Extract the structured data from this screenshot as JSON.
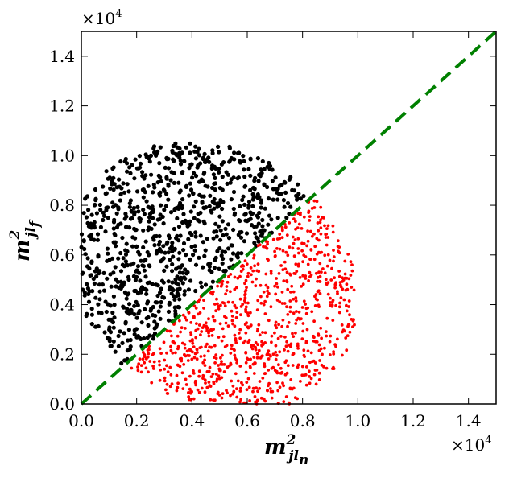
{
  "chart_data": {
    "type": "scatter",
    "title": "",
    "xlabel": {
      "main": "m",
      "sup": "2",
      "sub": "jl",
      "subsub": "n"
    },
    "ylabel": {
      "main": "m",
      "sup": "2",
      "sub": "jl",
      "subsub": "f"
    },
    "x_multiplier": {
      "base": "×10",
      "exp": "4"
    },
    "y_multiplier": {
      "base": "×10",
      "exp": "4"
    },
    "xlim": [
      0,
      15000
    ],
    "ylim": [
      0,
      15000
    ],
    "xticks": [
      0,
      2000,
      4000,
      6000,
      8000,
      10000,
      12000,
      14000
    ],
    "yticks": [
      0,
      2000,
      4000,
      6000,
      8000,
      10000,
      12000,
      14000
    ],
    "xtick_labels": [
      "0.0",
      "0.2",
      "0.4",
      "0.6",
      "0.8",
      "1.0",
      "1.2",
      "1.4"
    ],
    "ytick_labels": [
      "0.0",
      "0.2",
      "0.4",
      "0.6",
      "0.8",
      "1.0",
      "1.2",
      "1.4"
    ],
    "grid": false,
    "diagonal": {
      "x": [
        0,
        15000
      ],
      "y": [
        0,
        15000
      ],
      "color": "#008000",
      "style": "dashed"
    },
    "region": {
      "x_min": 0,
      "x_max": 9900,
      "y_max": 10500,
      "description_kinematic_edge": true
    },
    "series": [
      {
        "color": "#000000",
        "rule": "y > x",
        "count": 900,
        "marker_radius_data": 2.6
      },
      {
        "color": "#ff0000",
        "rule": "y <= x",
        "count": 900,
        "marker_radius_data": 1.9
      }
    ]
  }
}
